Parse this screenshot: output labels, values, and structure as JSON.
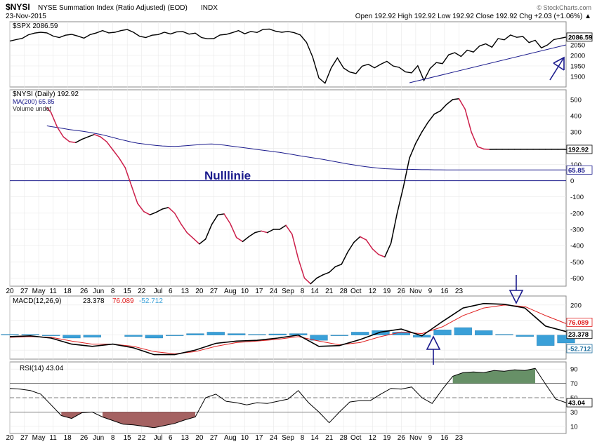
{
  "header": {
    "symbol": "$NYSI",
    "description": "NYSE Summation Index (Ratio Adjusted) (EOD)",
    "exchange": "INDX",
    "date": "23-Nov-2015",
    "ohlc": "Open 192.92  High 192.92  Low 192.92  Close 192.92  Chg +2.03 (+1.06%) ▲",
    "watermark": "© StockCharts.com"
  },
  "annotation": {
    "zero_line_label": "Nulllinie"
  },
  "colors": {
    "price_line": "#000000",
    "ma_line": "#1a1a8c",
    "summation_up": "#000000",
    "summation_down": "#cc1f4a",
    "macd_line": "#000000",
    "signal_line": "#e02020",
    "histogram": "#3aa0d8",
    "histogram_edge": "#1f6f9f",
    "rsi_overbought_fill": "#5f8a5f",
    "rsi_oversold_fill": "#a05a5a",
    "arrow": "#1a1a8c",
    "price_tag_bg": "#ffffff",
    "grid": "#c8c8c8"
  },
  "chart_data": [
    {
      "type": "line",
      "panel": "price",
      "legend": "$SPX 2086.59",
      "series_name": "$SPX",
      "last_value_label": "2086.59",
      "ylim": [
        1850,
        2160
      ],
      "y_ticks": [
        "2050",
        "2000",
        "1950",
        "1900"
      ],
      "x": [
        0,
        3,
        6,
        9,
        12,
        15,
        18,
        21,
        24,
        27,
        30,
        33,
        36,
        39,
        42,
        45,
        48,
        51,
        54,
        57,
        60,
        63,
        66,
        69,
        72,
        75,
        78,
        81,
        84,
        87,
        90,
        93,
        96,
        99,
        102,
        105,
        108,
        111,
        114,
        117,
        120,
        123,
        126,
        129,
        132,
        135,
        138,
        141,
        144,
        147,
        150,
        153,
        156,
        159,
        162,
        165,
        168,
        171,
        174,
        177,
        180,
        183,
        186,
        189,
        192,
        195,
        198,
        201,
        204,
        207,
        210,
        213,
        216,
        219,
        222,
        225,
        228,
        231,
        234,
        237,
        240,
        243,
        246,
        249,
        252,
        255,
        258,
        261,
        264,
        267,
        270
      ],
      "values": [
        2068,
        2075,
        2081,
        2098,
        2106,
        2110,
        2107,
        2092,
        2085,
        2096,
        2100,
        2092,
        2082,
        2099,
        2107,
        2118,
        2107,
        2110,
        2118,
        2123,
        2110,
        2091,
        2085,
        2096,
        2099,
        2110,
        2102,
        2112,
        2113,
        2101,
        2106,
        2085,
        2079,
        2080,
        2097,
        2100,
        2108,
        2118,
        2103,
        2114,
        2109,
        2124,
        2125,
        2115,
        2110,
        2114,
        2108,
        2097,
        2062,
        1992,
        1893,
        1868,
        1941,
        1988,
        1940,
        1921,
        1914,
        1949,
        1958,
        1941,
        1958,
        1972,
        1950,
        1943,
        1922,
        1917,
        1951,
        1881,
        1938,
        1966,
        1961,
        2003,
        2013,
        1995,
        2025,
        2016,
        2045,
        2055,
        2039,
        2080,
        2074,
        2097,
        2086,
        2090,
        2061,
        2072,
        2036,
        2050,
        2075,
        2081,
        2087
      ]
    },
    {
      "type": "line",
      "panel": "summation",
      "legend": "$NYSI (Daily) 192.92",
      "ma_legend": "MA(200) 65.85",
      "volume_legend": "Volume undef",
      "last_value_label": "192.92",
      "ma_last_label": "65.85",
      "ylim": [
        -650,
        560
      ],
      "y_ticks": [
        "500",
        "400",
        "300",
        "200",
        "100",
        "0",
        "-100",
        "-200",
        "-300",
        "-400",
        "-500",
        "-600"
      ],
      "x": [
        18,
        20,
        23,
        26,
        29,
        32,
        35,
        38,
        41,
        44,
        47,
        50,
        53,
        56,
        59,
        62,
        65,
        68,
        71,
        74,
        77,
        80,
        83,
        86,
        89,
        92,
        95,
        98,
        101,
        104,
        107,
        110,
        113,
        116,
        119,
        122,
        125,
        128,
        131,
        134,
        137,
        140,
        143,
        146,
        149,
        152,
        155,
        158,
        161,
        164,
        167,
        170,
        173,
        176,
        179,
        182,
        185,
        188,
        191,
        194,
        197,
        200,
        203,
        206,
        209,
        212,
        215,
        218,
        221,
        224,
        227,
        230,
        233,
        236,
        239,
        242,
        245,
        248,
        251,
        254,
        257,
        260,
        263,
        266,
        269,
        270
      ],
      "values": [
        450,
        420,
        330,
        270,
        240,
        235,
        255,
        270,
        285,
        270,
        240,
        190,
        140,
        80,
        -30,
        -140,
        -190,
        -210,
        -195,
        -175,
        -165,
        -200,
        -265,
        -320,
        -355,
        -390,
        -360,
        -270,
        -210,
        -205,
        -265,
        -350,
        -375,
        -345,
        -320,
        -310,
        -320,
        -300,
        -300,
        -275,
        -330,
        -480,
        -600,
        -635,
        -600,
        -580,
        -565,
        -530,
        -515,
        -440,
        -380,
        -345,
        -365,
        -420,
        -455,
        -470,
        -385,
        -200,
        -40,
        140,
        230,
        300,
        360,
        410,
        430,
        470,
        500,
        505,
        440,
        300,
        210,
        195,
        192.92,
        193,
        193,
        193,
        193,
        193,
        193,
        193,
        193,
        193,
        193,
        193,
        193,
        193
      ],
      "ma_values": [
        338,
        333,
        328,
        321,
        315,
        310,
        305,
        299,
        292,
        285,
        276,
        266,
        256,
        247,
        238,
        231,
        226,
        221,
        217,
        214,
        212,
        211,
        213,
        216,
        219,
        222,
        225,
        226,
        223,
        219,
        214,
        209,
        204,
        199,
        194,
        189,
        184,
        179,
        174,
        168,
        162,
        155,
        149,
        143,
        137,
        131,
        124,
        117,
        110,
        103,
        97,
        91,
        86,
        81,
        77,
        74,
        72,
        71,
        70,
        70,
        69,
        68,
        68,
        67,
        67,
        66,
        66,
        66,
        66,
        66,
        65.85,
        65.85,
        65.85,
        65.85,
        65.85,
        65.85,
        65.85,
        65.85,
        65.85,
        65.85,
        65.85,
        65.85,
        65.85,
        65.85,
        65.85,
        65.85
      ]
    },
    {
      "type": "line",
      "panel": "macd",
      "legend_prefix": "MACD(12,26,9)",
      "legend_macd": "23.378",
      "legend_signal": "76.089",
      "legend_hist": "-52.712",
      "last_labels": [
        "76.089",
        "23.378",
        "-52.712"
      ],
      "ylim": [
        -160,
        260
      ],
      "y_ticks": [
        "200",
        "100",
        "0",
        "-100"
      ],
      "x": [
        0,
        10,
        20,
        30,
        40,
        50,
        60,
        70,
        80,
        90,
        100,
        110,
        120,
        130,
        140,
        150,
        160,
        170,
        180,
        190,
        200,
        210,
        220,
        230,
        240,
        250,
        260,
        270
      ],
      "macd": [
        -10,
        -5,
        -20,
        -60,
        -75,
        -60,
        -85,
        -130,
        -130,
        -100,
        -55,
        -40,
        -35,
        -20,
        0,
        -75,
        -70,
        -30,
        20,
        40,
        -5,
        90,
        180,
        210,
        205,
        180,
        60,
        23.378
      ],
      "signal": [
        -15,
        -10,
        -15,
        -40,
        -60,
        -60,
        -75,
        -110,
        -125,
        -110,
        -75,
        -50,
        -40,
        -28,
        -10,
        -40,
        -65,
        -50,
        -10,
        20,
        10,
        55,
        130,
        180,
        200,
        190,
        130,
        76.089
      ],
      "histogram": [
        5,
        5,
        -5,
        -20,
        -15,
        0,
        -10,
        -20,
        -5,
        10,
        20,
        10,
        5,
        8,
        10,
        -35,
        -5,
        20,
        30,
        20,
        -15,
        35,
        50,
        30,
        5,
        -10,
        -70,
        -52.712
      ]
    },
    {
      "type": "area",
      "panel": "rsi",
      "legend": "RSI(14) 43.04",
      "last_value_label": "43.04",
      "ylim": [
        0,
        100
      ],
      "y_ticks": [
        "90",
        "70",
        "50",
        "30",
        "10"
      ],
      "levels": [
        70,
        50,
        30
      ],
      "x": [
        0,
        5,
        10,
        15,
        20,
        25,
        30,
        35,
        40,
        45,
        50,
        55,
        60,
        65,
        70,
        75,
        80,
        85,
        90,
        95,
        100,
        105,
        110,
        115,
        120,
        125,
        130,
        135,
        140,
        145,
        150,
        155,
        160,
        165,
        170,
        175,
        180,
        185,
        190,
        195,
        200,
        205,
        210,
        215,
        220,
        225,
        230,
        235,
        240,
        245,
        250,
        255,
        260,
        265,
        270
      ],
      "values": [
        63,
        62,
        60,
        55,
        40,
        25,
        21,
        29,
        30,
        23,
        18,
        13,
        12,
        10,
        8,
        11,
        14,
        19,
        23,
        50,
        55,
        45,
        43,
        40,
        43,
        42,
        45,
        48,
        60,
        43,
        30,
        15,
        30,
        44,
        46,
        46,
        55,
        63,
        62,
        65,
        50,
        42,
        62,
        80,
        85,
        86,
        85,
        88,
        87,
        89,
        88,
        91,
        69,
        48,
        43.04
      ]
    }
  ],
  "x_axis": {
    "labels": [
      "20",
      "27",
      "May",
      "11",
      "18",
      "26",
      "Jun",
      "8",
      "15",
      "22",
      "Jul",
      "6",
      "13",
      "20",
      "27",
      "Aug",
      "10",
      "17",
      "24",
      "Sep",
      "8",
      "14",
      "21",
      "28",
      "Oct",
      "12",
      "19",
      "26",
      "Nov",
      "9",
      "16",
      "23"
    ],
    "values": [
      0,
      7,
      14,
      21,
      28,
      36,
      43,
      50,
      57,
      64,
      72,
      78,
      85,
      92,
      99,
      107,
      114,
      121,
      128,
      135,
      142,
      148,
      155,
      162,
      168,
      176,
      183,
      190,
      197,
      204,
      211,
      218
    ]
  }
}
